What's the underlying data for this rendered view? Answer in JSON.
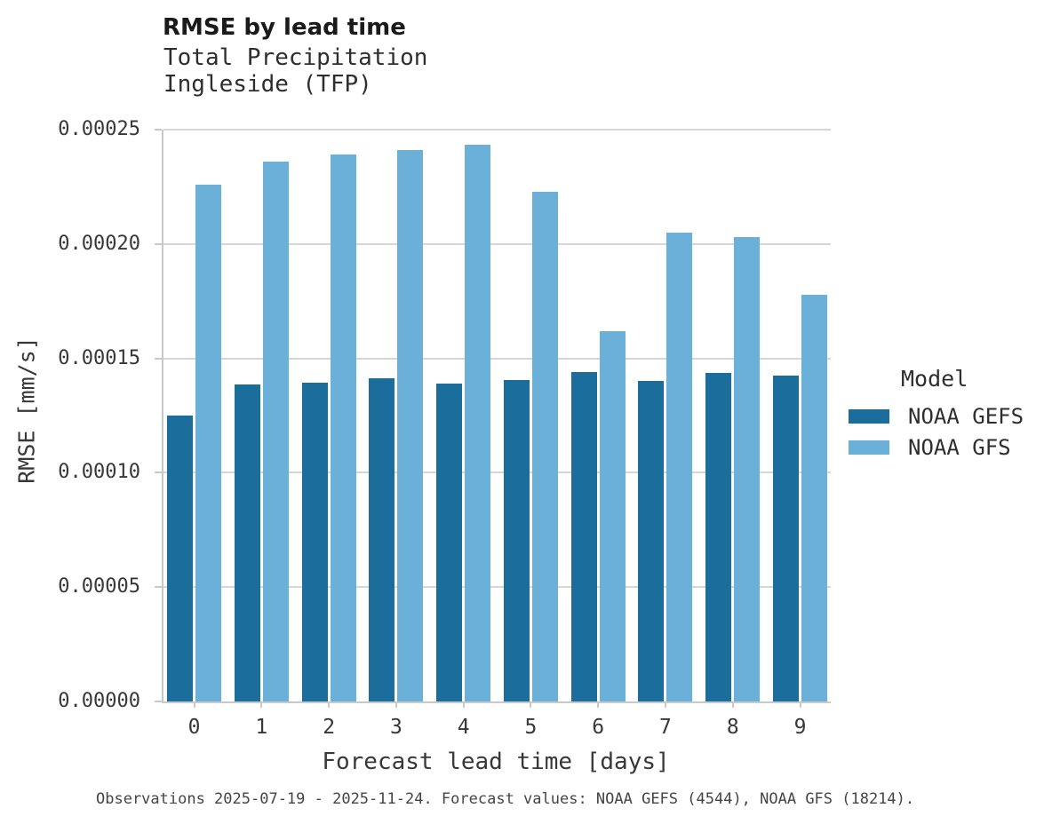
{
  "header": {
    "title": "RMSE by lead time",
    "subtitle_line1": "Total Precipitation",
    "subtitle_line2": "Ingleside (TFP)"
  },
  "chart_data": {
    "type": "bar",
    "title": "RMSE by lead time",
    "subtitle_lines": [
      "Total Precipitation",
      "Ingleside (TFP)"
    ],
    "xlabel": "Forecast lead time [days]",
    "ylabel": "RMSE [mm/s]",
    "categories": [
      "0",
      "1",
      "2",
      "3",
      "4",
      "5",
      "6",
      "7",
      "8",
      "9"
    ],
    "series": [
      {
        "name": "NOAA GEFS",
        "color": "#1b6e9c",
        "values": [
          0.0001251,
          0.0001386,
          0.0001394,
          0.0001413,
          0.000139,
          0.0001406,
          0.000144,
          0.0001402,
          0.0001437,
          0.0001425
        ]
      },
      {
        "name": "NOAA GFS",
        "color": "#6ab0d8",
        "values": [
          0.000226,
          0.0002361,
          0.0002392,
          0.0002411,
          0.0002434,
          0.0002229,
          0.0001618,
          0.0002051,
          0.0002032,
          0.0001777
        ]
      }
    ],
    "ylim": [
      0,
      0.00025
    ],
    "yticks": [
      {
        "label": "0.00000",
        "value": 0.0
      },
      {
        "label": "0.00005",
        "value": 5e-05
      },
      {
        "label": "0.00010",
        "value": 0.0001
      },
      {
        "label": "0.00015",
        "value": 0.00015
      },
      {
        "label": "0.00020",
        "value": 0.0002
      },
      {
        "label": "0.00025",
        "value": 0.00025
      }
    ],
    "grid": "horizontal",
    "legend": {
      "title": "Model",
      "position": "right"
    }
  },
  "footer": {
    "note": "Observations 2025-07-19 - 2025-11-24. Forecast values: NOAA GEFS (4544), NOAA GFS (18214)."
  },
  "colors": {
    "noaa_gefs": "#1b6e9c",
    "noaa_gfs": "#6ab0d8",
    "gridline": "#d6d6d6",
    "spine": "#c9c9c9"
  }
}
